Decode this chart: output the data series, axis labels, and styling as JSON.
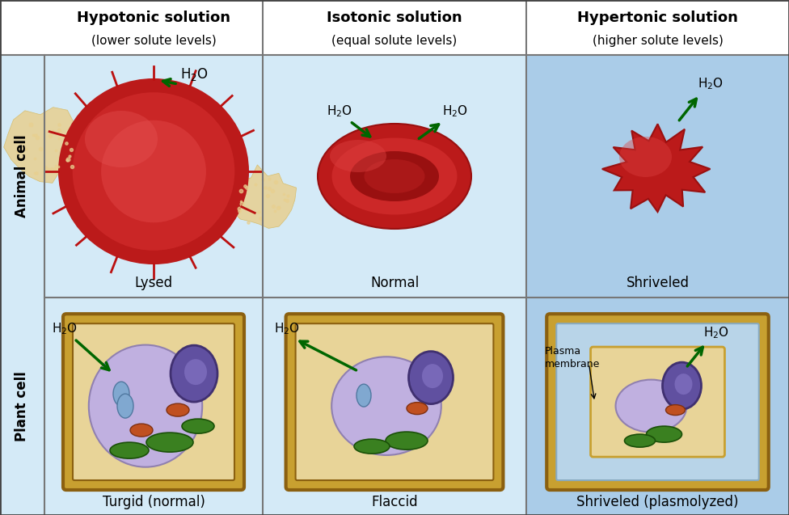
{
  "title_col1": "Hypotonic solution",
  "subtitle_col1": "(lower solute levels)",
  "title_col2": "Isotonic solution",
  "subtitle_col2": "(equal solute levels)",
  "title_col3": "Hypertonic solution",
  "subtitle_col3": "(higher solute levels)",
  "row1_label": "Animal cell",
  "row2_label": "Plant cell",
  "animal_labels": [
    "Lysed",
    "Normal",
    "Shriveled"
  ],
  "plant_labels": [
    "Turgid (normal)",
    "Flaccid",
    "Shriveled (plasmolyzed)"
  ],
  "plasma_membrane_label": "Plasma\nmembrane",
  "bg_light": "#d4eaf7",
  "bg_medium": "#aacce8",
  "bg_white_header": "#ffffff",
  "cell_red": "#cc2020",
  "arrow_color": "#006600",
  "border_color": "#777777",
  "fig_bg": "#ffffff"
}
